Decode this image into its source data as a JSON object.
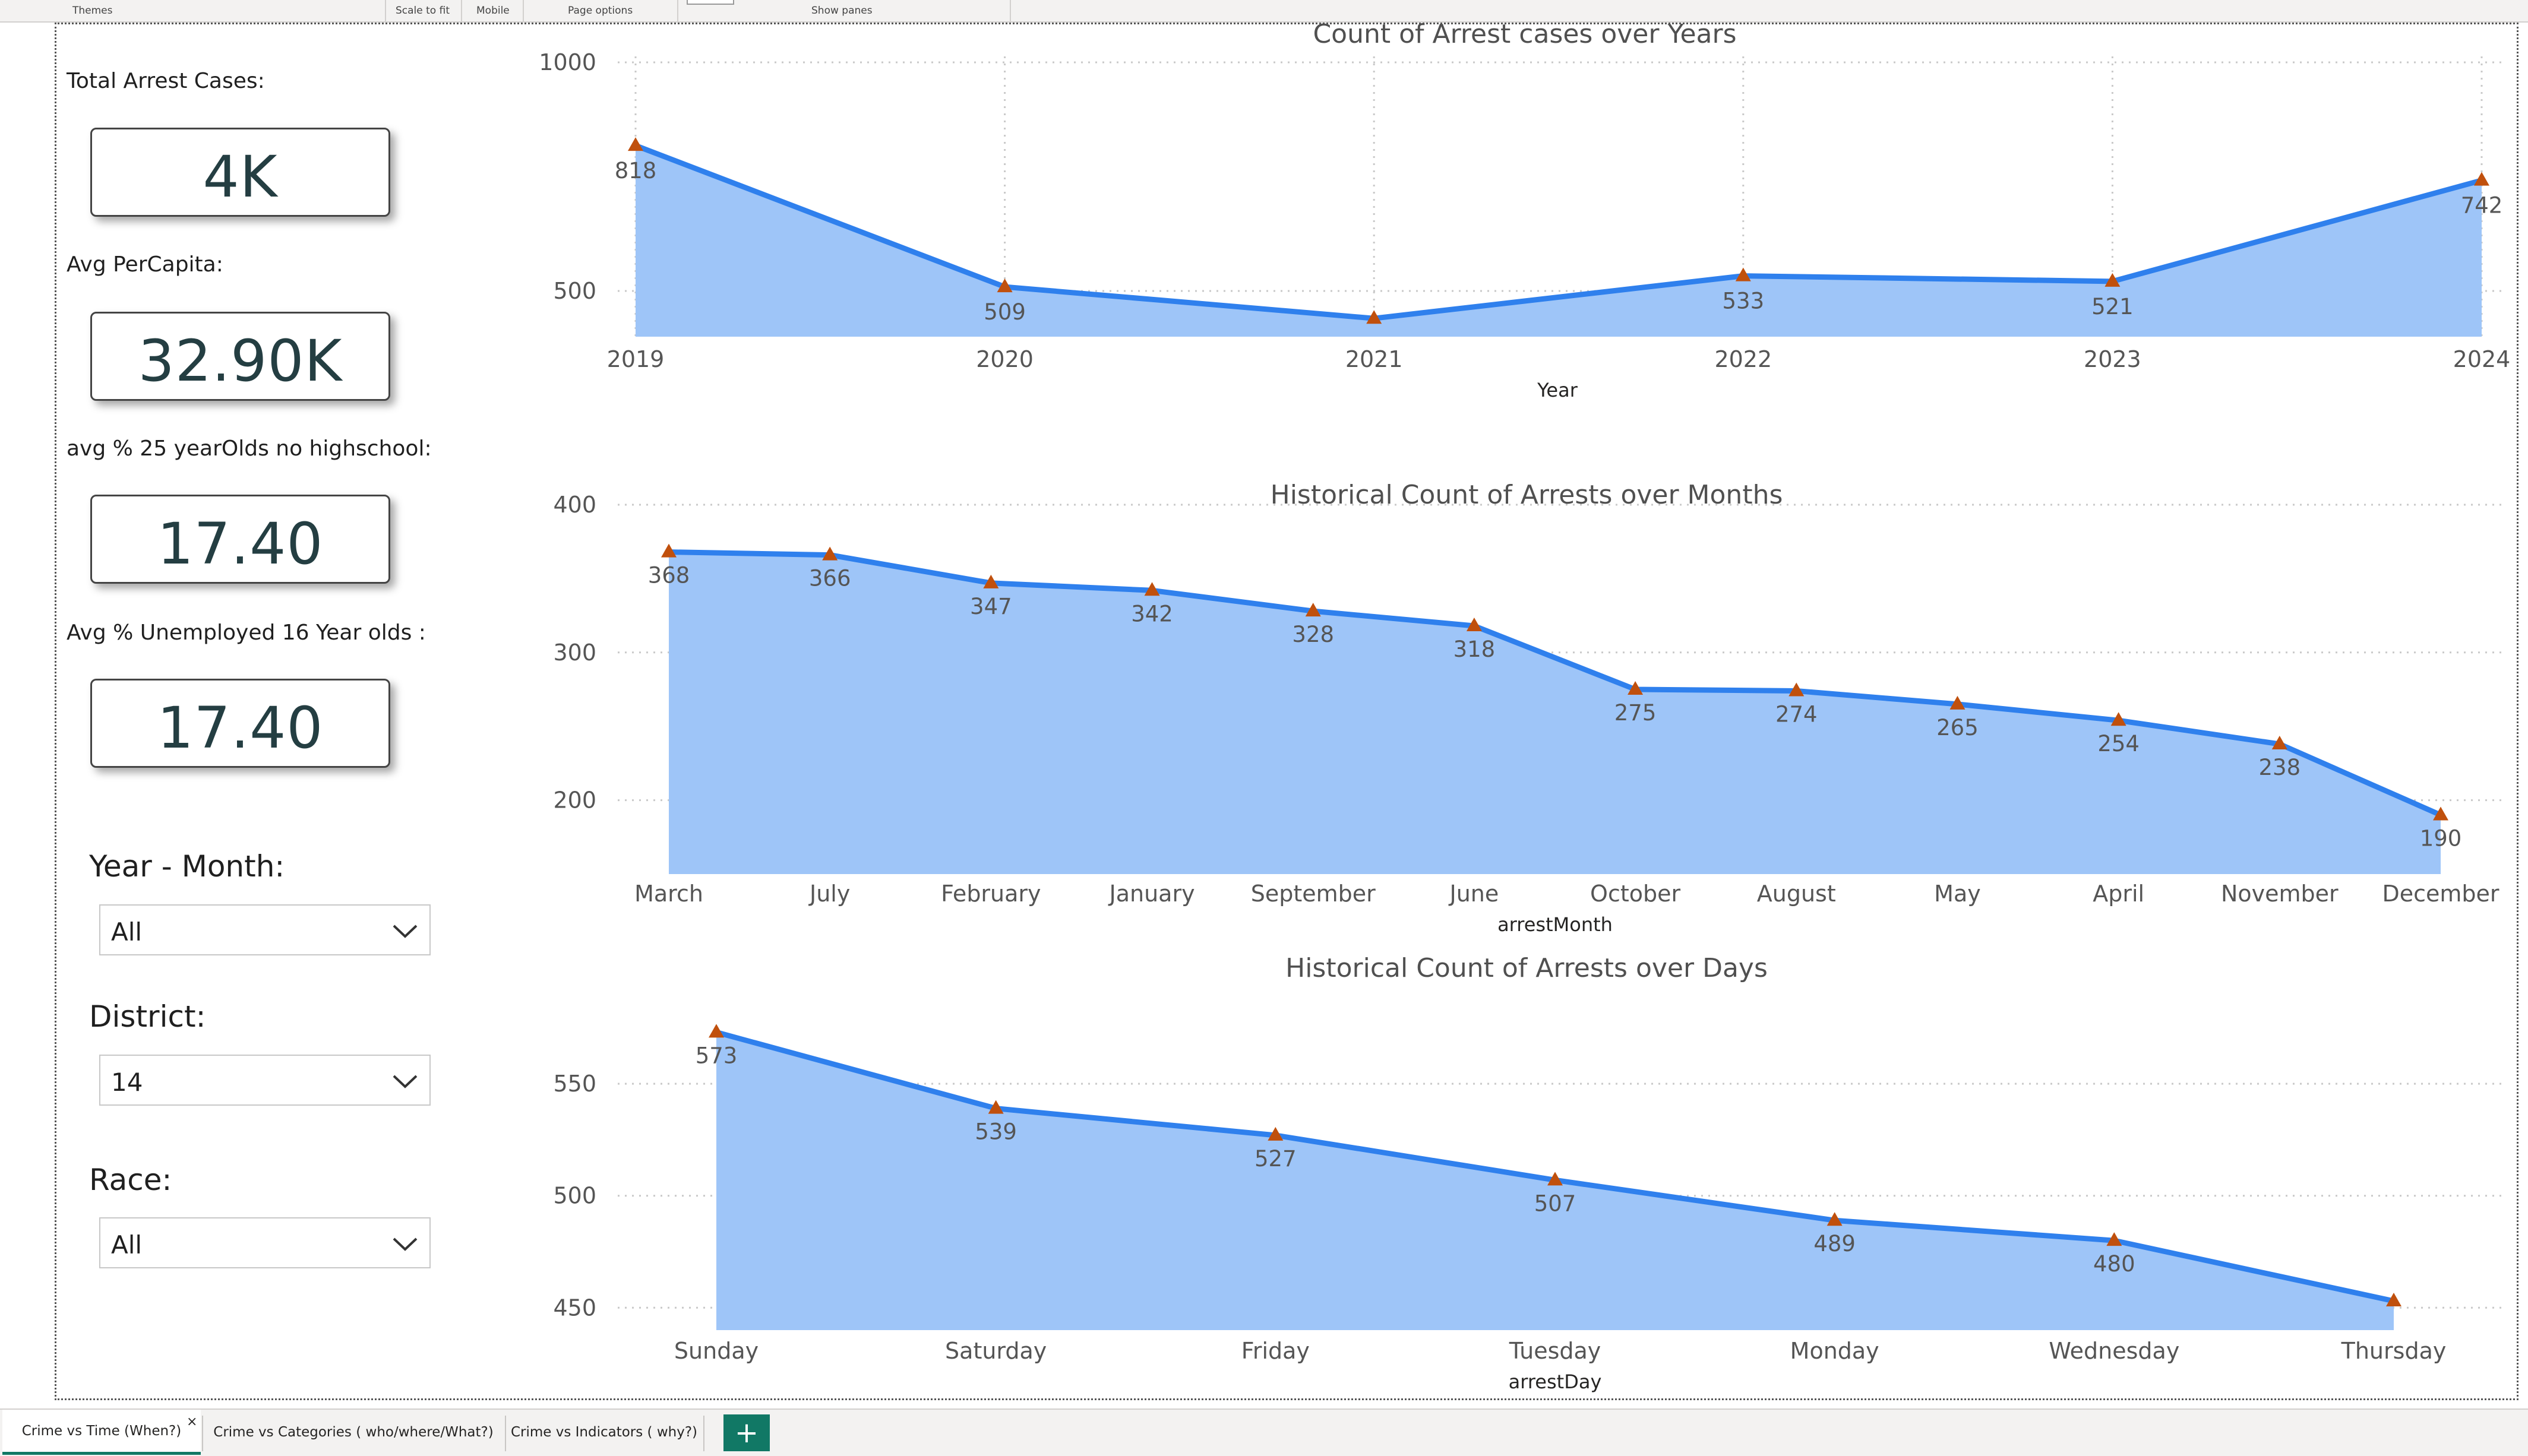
{
  "ribbon": {
    "labels": [
      "Themes",
      "Scale to fit",
      "Mobile",
      "Page options",
      "Show panes"
    ]
  },
  "kpis": [
    {
      "label": "Total Arrest Cases:",
      "value": "4K"
    },
    {
      "label": "Avg PerCapita:",
      "value": "32.90K"
    },
    {
      "label": "avg % 25 yearOlds no highschool:",
      "value": "17.40"
    },
    {
      "label": "Avg % Unemployed 16 Year olds :",
      "value": "17.40"
    }
  ],
  "slicers": [
    {
      "title": "Year - Month:",
      "value": "All"
    },
    {
      "title": "District:",
      "value": "14"
    },
    {
      "title": "Race:",
      "value": "All"
    }
  ],
  "tabs": [
    {
      "label": "Crime vs Time (When?)",
      "close": "×"
    },
    {
      "label": "Crime vs Categories ( who/where/What?)"
    },
    {
      "label": "Crime vs Indicators ( why?)"
    }
  ],
  "add_page": "+",
  "colors": {
    "line": "#2f80ed",
    "area": "#9ec5f8",
    "marker": "#c0500d",
    "accent": "#117865"
  },
  "chart_data": [
    {
      "type": "area",
      "title": "Count of Arrest cases over Years",
      "xlabel": "Year",
      "ylabel": "",
      "categories": [
        "2019",
        "2020",
        "2021",
        "2022",
        "2023",
        "2024"
      ],
      "values": [
        818,
        509,
        440,
        533,
        521,
        742
      ],
      "labels": [
        "818",
        "509",
        "",
        "533",
        "521",
        "742"
      ],
      "yticks": [
        500,
        1000
      ],
      "ylim": [
        400,
        1000
      ],
      "grid": "dotted"
    },
    {
      "type": "area",
      "title": "Historical Count of Arrests over Months",
      "xlabel": "arrestMonth",
      "ylabel": "",
      "categories": [
        "March",
        "July",
        "February",
        "January",
        "September",
        "June",
        "October",
        "August",
        "May",
        "April",
        "November",
        "December"
      ],
      "values": [
        368,
        366,
        347,
        342,
        328,
        318,
        275,
        274,
        265,
        254,
        238,
        190
      ],
      "labels": [
        "368",
        "366",
        "347",
        "342",
        "328",
        "318",
        "275",
        "274",
        "265",
        "254",
        "238",
        "190"
      ],
      "yticks": [
        200,
        300,
        400
      ],
      "ylim": [
        150,
        400
      ],
      "grid": "dotted"
    },
    {
      "type": "area",
      "title": "Historical Count of Arrests over Days",
      "xlabel": "arrestDay",
      "ylabel": "",
      "categories": [
        "Sunday",
        "Saturday",
        "Friday",
        "Tuesday",
        "Monday",
        "Wednesday",
        "Thursday"
      ],
      "values": [
        573,
        539,
        527,
        507,
        489,
        480,
        453
      ],
      "labels": [
        "573",
        "539",
        "527",
        "507",
        "489",
        "480",
        ""
      ],
      "yticks": [
        450,
        500,
        550
      ],
      "ylim": [
        440,
        580
      ],
      "grid": "dotted"
    }
  ]
}
